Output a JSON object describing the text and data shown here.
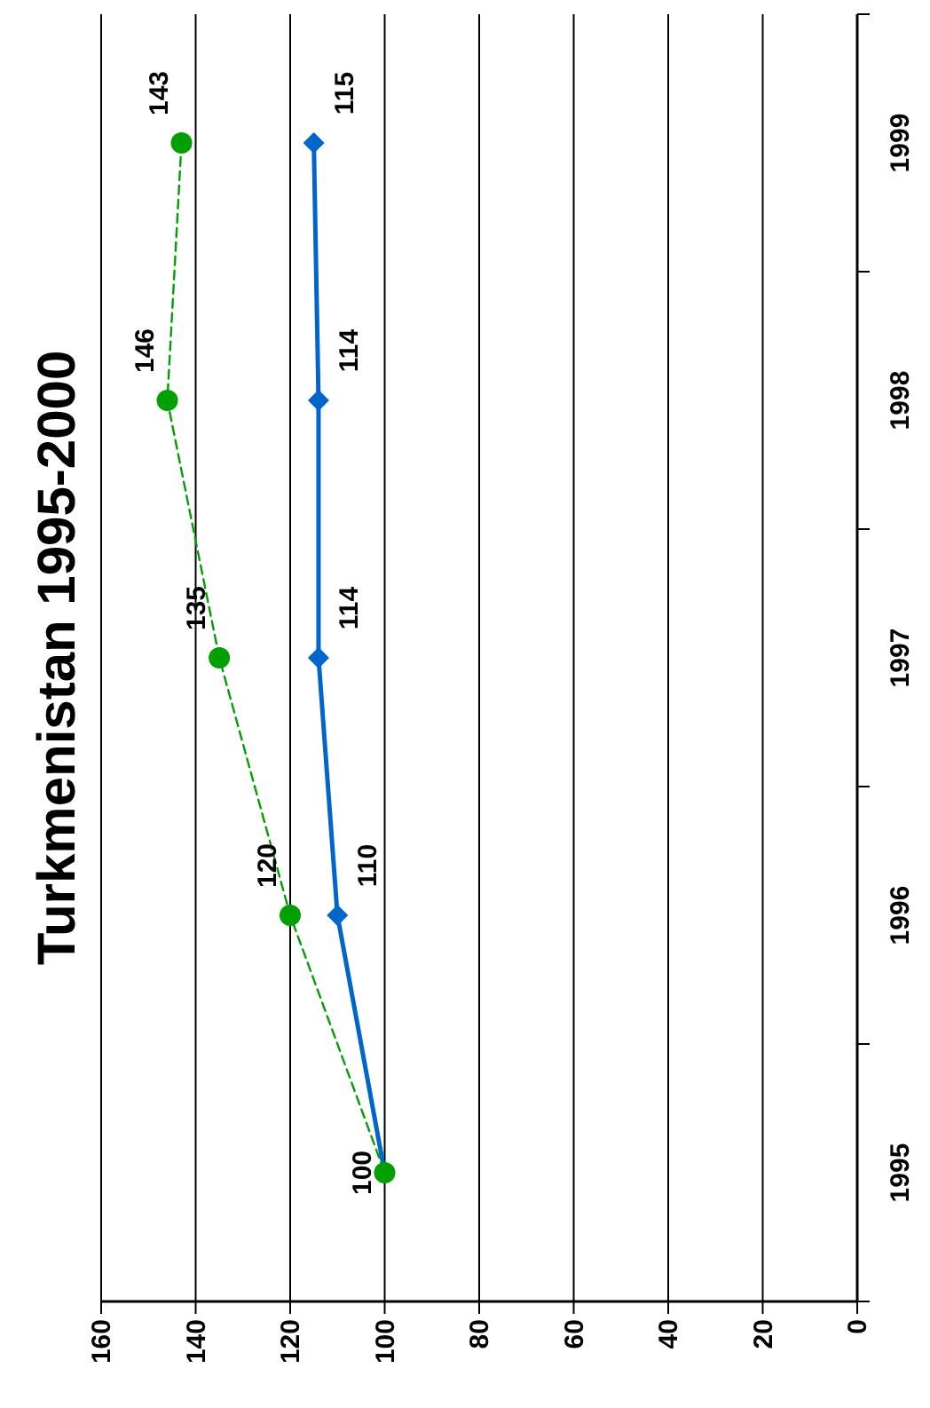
{
  "chart_data": {
    "type": "line",
    "orientation": "horizontal",
    "title": "Turkmenistan 1995-2000",
    "categories": [
      "1999",
      "1998",
      "1997",
      "1996",
      "1995"
    ],
    "xlim": [
      160,
      0
    ],
    "xticks": [
      160,
      140,
      120,
      100,
      80,
      60,
      40,
      20,
      0
    ],
    "grid": "x",
    "series": [
      {
        "color": "#0066cc",
        "values": [
          115,
          114,
          114,
          110,
          100
        ],
        "marker": "diamond",
        "line_style": "solid",
        "value_labels": [
          "115",
          "114",
          "114",
          "110",
          null
        ]
      },
      {
        "color": "#00a000",
        "values": [
          143,
          146,
          135,
          120,
          100
        ],
        "marker": "circle",
        "line_style": "dashed",
        "value_labels": [
          "143",
          "146",
          "135",
          "120",
          "100"
        ]
      }
    ]
  }
}
